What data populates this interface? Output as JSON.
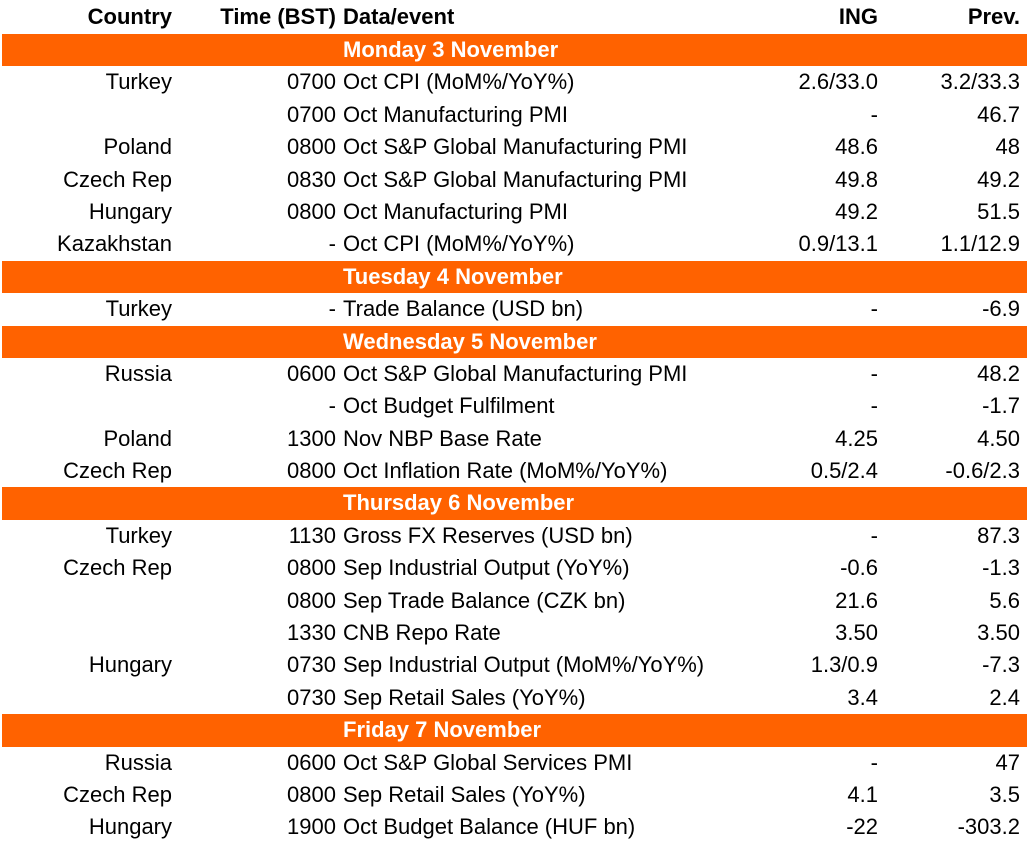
{
  "header": {
    "country": "Country",
    "time": "Time (BST)",
    "event": "Data/event",
    "ing": "ING",
    "prev": "Prev."
  },
  "days": [
    {
      "label": "Monday 3 November",
      "rows": [
        [
          "Turkey",
          "0700",
          "Oct CPI (MoM%/YoY%)",
          "2.6/33.0",
          "3.2/33.3"
        ],
        [
          "",
          "0700",
          "Oct Manufacturing PMI",
          "-",
          "46.7"
        ],
        [
          "Poland",
          "0800",
          "Oct S&P Global Manufacturing PMI",
          "48.6",
          "48"
        ],
        [
          "Czech Rep",
          "0830",
          "Oct S&P Global Manufacturing PMI",
          "49.8",
          "49.2"
        ],
        [
          "Hungary",
          "0800",
          "Oct Manufacturing PMI",
          "49.2",
          "51.5"
        ],
        [
          "Kazakhstan",
          "-",
          "Oct CPI (MoM%/YoY%)",
          "0.9/13.1",
          "1.1/12.9"
        ]
      ]
    },
    {
      "label": "Tuesday 4 November",
      "rows": [
        [
          "Turkey",
          "-",
          "Trade Balance (USD bn)",
          "-",
          "-6.9"
        ]
      ]
    },
    {
      "label": "Wednesday 5 November",
      "rows": [
        [
          "Russia",
          "0600",
          "Oct S&P Global Manufacturing PMI",
          "-",
          "48.2"
        ],
        [
          "",
          "-",
          "Oct Budget Fulfilment",
          "-",
          "-1.7"
        ],
        [
          "Poland",
          "1300",
          "Nov NBP Base Rate",
          "4.25",
          "4.50"
        ],
        [
          "Czech Rep",
          "0800",
          "Oct Inflation Rate (MoM%/YoY%)",
          "0.5/2.4",
          "-0.6/2.3"
        ]
      ]
    },
    {
      "label": "Thursday 6 November",
      "rows": [
        [
          "Turkey",
          "1130",
          "Gross FX Reserves (USD bn)",
          "-",
          "87.3"
        ],
        [
          "Czech Rep",
          "0800",
          "Sep Industrial Output (YoY%)",
          "-0.6",
          "-1.3"
        ],
        [
          "",
          "0800",
          "Sep Trade Balance (CZK bn)",
          "21.6",
          "5.6"
        ],
        [
          "",
          "1330",
          "CNB Repo Rate",
          "3.50",
          "3.50"
        ],
        [
          "Hungary",
          "0730",
          "Sep Industrial Output (MoM%/YoY%)",
          "1.3/0.9",
          "-7.3"
        ],
        [
          "",
          "0730",
          "Sep Retail Sales (YoY%)",
          "3.4",
          "2.4"
        ]
      ]
    },
    {
      "label": "Friday 7 November",
      "rows": [
        [
          "Russia",
          "0600",
          "Oct S&P Global Services PMI",
          "-",
          "47"
        ],
        [
          "Czech Rep",
          "0800",
          "Sep Retail Sales (YoY%)",
          "4.1",
          "3.5"
        ],
        [
          "Hungary",
          "1900",
          "Oct Budget Balance (HUF bn)",
          "-22",
          "-303.2"
        ]
      ]
    }
  ]
}
